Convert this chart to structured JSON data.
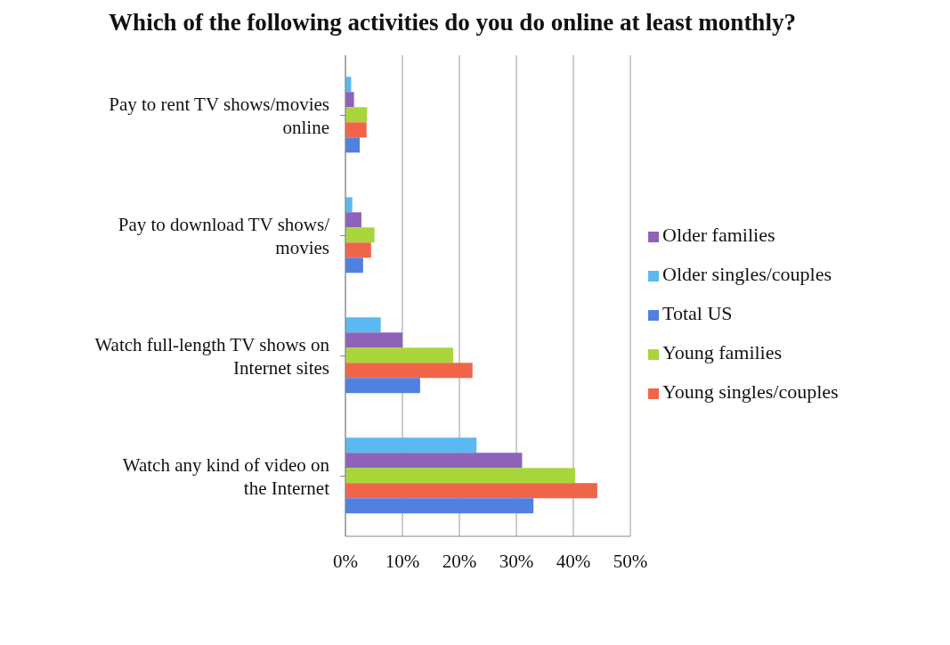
{
  "chart_data": {
    "type": "bar",
    "orientation": "horizontal",
    "title": "Which of the following activities do you do online at least monthly?",
    "categories": [
      "Pay to rent TV shows/movies online",
      "Pay to download TV shows/movies",
      "Watch full-length TV shows on Internet sites",
      "Watch any kind of video on the Internet"
    ],
    "series": [
      {
        "name": "Older singles/couples",
        "color": "#5cb8f0",
        "values": [
          1,
          1.2,
          6.2,
          23
        ]
      },
      {
        "name": "Older families",
        "color": "#8e62b8",
        "values": [
          1.5,
          2.8,
          10,
          31
        ]
      },
      {
        "name": "Young families",
        "color": "#a8d63a",
        "values": [
          3.8,
          5.1,
          18.9,
          40.3
        ]
      },
      {
        "name": "Young singles/couples",
        "color": "#f0654a",
        "values": [
          3.7,
          4.5,
          22.3,
          44.2
        ]
      },
      {
        "name": "Total US",
        "color": "#5080e0",
        "values": [
          2.5,
          3.1,
          13.1,
          33
        ]
      }
    ],
    "xlim": [
      0,
      50
    ],
    "xticks": [
      {
        "value": 0,
        "label": "0%"
      },
      {
        "value": 10,
        "label": "10%"
      },
      {
        "value": 20,
        "label": "20%"
      },
      {
        "value": 30,
        "label": "30%"
      },
      {
        "value": 40,
        "label": "40%"
      },
      {
        "value": 50,
        "label": "50%"
      }
    ],
    "grid": "x",
    "legend": "right"
  }
}
